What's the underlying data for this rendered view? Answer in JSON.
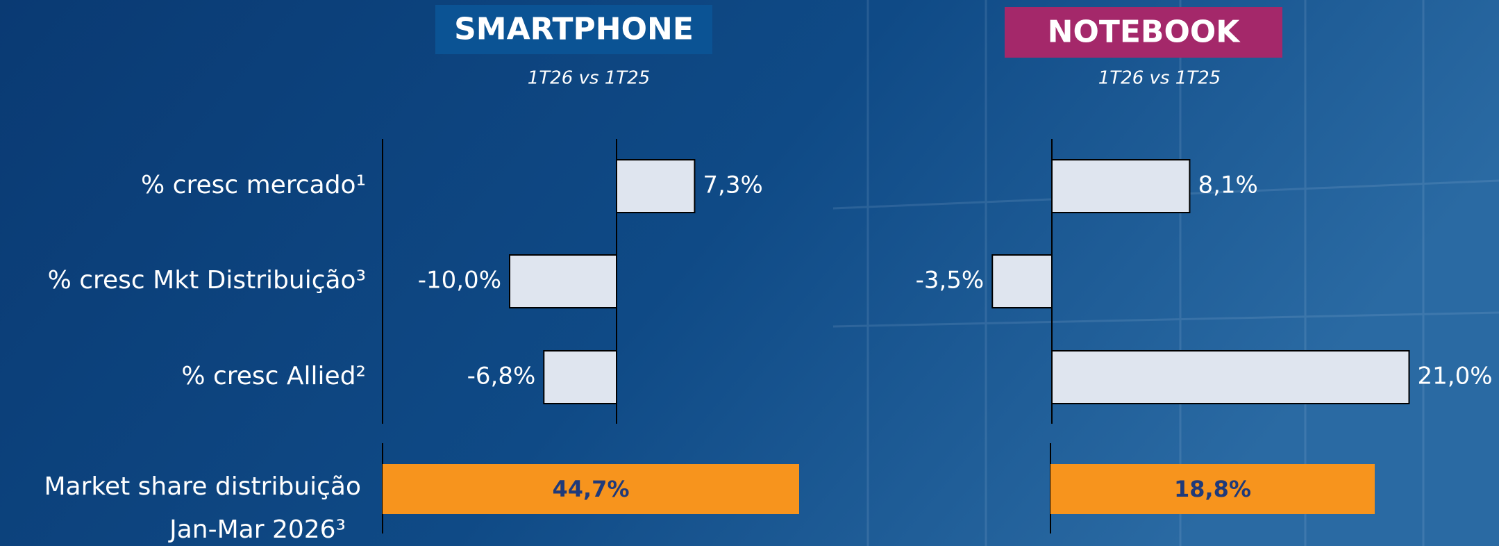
{
  "chart_data": {
    "type": "hbar",
    "categories": [
      "% cresc mercado¹",
      "% cresc Mkt Distribuição³",
      "% cresc Allied²"
    ],
    "bar_color": "#dfe5ef",
    "series": [
      {
        "name": "SMARTPHONE",
        "color": "#0b5394",
        "subtitle": "1T26 vs 1T25",
        "values": [
          7.3,
          -10.0,
          -6.8
        ],
        "value_labels": [
          "7,3%",
          "-10,0%",
          "-6,8%"
        ]
      },
      {
        "name": "NOTEBOOK",
        "color": "#a4286a",
        "subtitle": "1T26 vs 1T25",
        "values": [
          8.1,
          -3.5,
          21.0
        ],
        "value_labels": [
          "8,1%",
          "-3,5%",
          "21,0%"
        ]
      }
    ],
    "share": {
      "label": [
        "Market share distribuição",
        "Jan-Mar 2026³"
      ],
      "color": "#f7941d",
      "values": [
        44.7,
        18.8
      ],
      "value_labels": [
        "44,7%",
        "18,8%"
      ]
    }
  }
}
